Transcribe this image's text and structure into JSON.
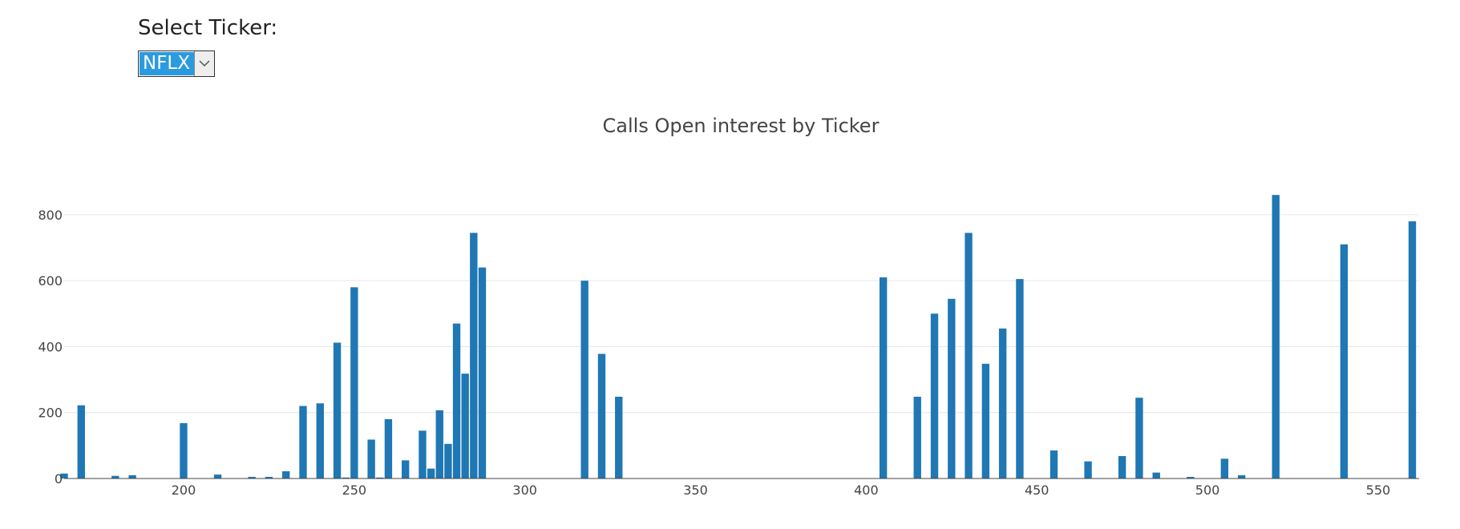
{
  "dropdown": {
    "label": "Select Ticker:",
    "selected": "NFLX"
  },
  "chart_data": {
    "type": "bar",
    "title": "Calls Open interest by Ticker",
    "xlabel": "",
    "ylabel": "",
    "xlim": [
      165,
      562
    ],
    "ylim": [
      0,
      880
    ],
    "xticks": [
      200,
      250,
      300,
      350,
      400,
      450,
      500,
      550
    ],
    "yticks": [
      0,
      200,
      400,
      600,
      800
    ],
    "grid": "horizontal",
    "bar_color": "#1f77b4",
    "x": [
      165,
      170,
      180,
      185,
      200,
      210,
      220,
      225,
      230,
      235,
      240,
      245,
      247.5,
      250,
      255,
      257.5,
      260,
      265,
      270,
      272.5,
      275,
      277.5,
      280,
      282.5,
      285,
      287.5,
      317.5,
      322.5,
      327.5,
      405,
      415,
      420,
      425,
      430,
      435,
      440,
      445,
      455,
      465,
      475,
      480,
      485,
      495,
      505,
      510,
      520,
      540,
      560
    ],
    "values": [
      15,
      222,
      8,
      10,
      168,
      12,
      5,
      5,
      22,
      220,
      228,
      412,
      3,
      580,
      118,
      3,
      180,
      55,
      145,
      30,
      207,
      105,
      470,
      318,
      745,
      640,
      600,
      378,
      248,
      610,
      248,
      500,
      545,
      745,
      348,
      455,
      605,
      85,
      52,
      68,
      245,
      18,
      5,
      60,
      10,
      860,
      710,
      780
    ]
  }
}
